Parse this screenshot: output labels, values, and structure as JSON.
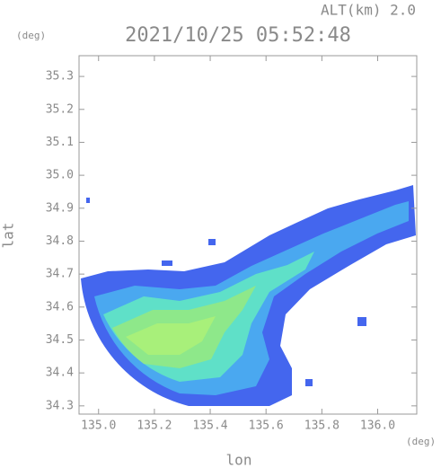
{
  "chart_data": {
    "type": "map",
    "title": "2021/10/25 05:52:48",
    "annotation": "ALT(km) 2.0",
    "xlabel": "lon",
    "ylabel": "lat",
    "x_unit": "(deg)",
    "y_unit": "(deg)",
    "xlim": [
      134.93,
      136.14
    ],
    "ylim": [
      34.275,
      35.363
    ],
    "xticks": [
      {
        "value": 135,
        "label": "135.0"
      },
      135.2,
      135.4,
      135.6,
      135.8,
      {
        "value": 136,
        "label": "136.0"
      }
    ],
    "yticks": [
      {
        "value": 34.3,
        "label": "34.3"
      },
      34.4,
      34.5,
      34.6,
      34.7,
      34.8,
      34.9,
      {
        "value": 35,
        "label": "35.0"
      },
      35.1,
      35.2,
      35.3
    ]
  }
}
